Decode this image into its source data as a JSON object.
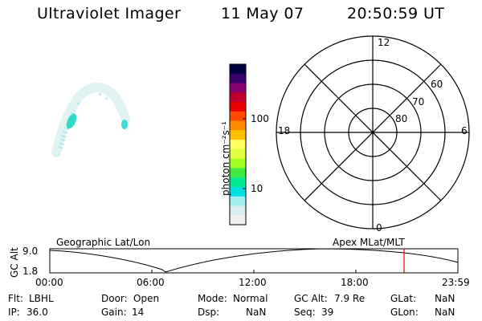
{
  "header": {
    "instrument": "Ultraviolet Imager",
    "date": "11 May 07",
    "time": "20:50:59 UT"
  },
  "colorbar": {
    "unit_label": "photon cm⁻²s⁻¹",
    "tick_100": "100",
    "tick_10": "10",
    "colors": [
      "#000040",
      "#3a006e",
      "#8a0070",
      "#c00030",
      "#e80000",
      "#ff4a00",
      "#ff8a00",
      "#ffc000",
      "#ffff60",
      "#e0ff40",
      "#a0ff20",
      "#40e840",
      "#00e890",
      "#00e0e0",
      "#a0f0f0",
      "#d8eeee",
      "#f0f0f0"
    ]
  },
  "polar": {
    "mlt_top": "12",
    "mlt_left": "18",
    "mlt_right": "6",
    "mlt_bottom": "0",
    "lat_60": "60",
    "lat_70": "70",
    "lat_80": "80"
  },
  "timeline": {
    "left_title": "Geographic Lat/Lon",
    "right_title": "Apex MLat/MLT",
    "axis_label": "GC Alt",
    "y_top": "9.0",
    "y_bottom": "1.8",
    "x_ticks": [
      "00:00",
      "06:00",
      "12:00",
      "18:00",
      "23:59"
    ],
    "current_time_color": "#e00000"
  },
  "status": {
    "flt_label": "Flt:",
    "flt_value": "LBHL",
    "ip_label": "IP:",
    "ip_value": "36.0",
    "door_label": "Door:",
    "door_value": "Open",
    "gain_label": "Gain:",
    "gain_value": "14",
    "mode_label": "Mode:",
    "mode_value": "Normal",
    "dsp_label": "Dsp:",
    "dsp_value": "NaN",
    "gcalt_label": "GC Alt:",
    "gcalt_value": "7.9 Re",
    "seq_label": "Seq:",
    "seq_value": "39",
    "glat_label": "GLat:",
    "glat_value": "NaN",
    "glon_label": "GLon:",
    "glon_value": "NaN"
  }
}
